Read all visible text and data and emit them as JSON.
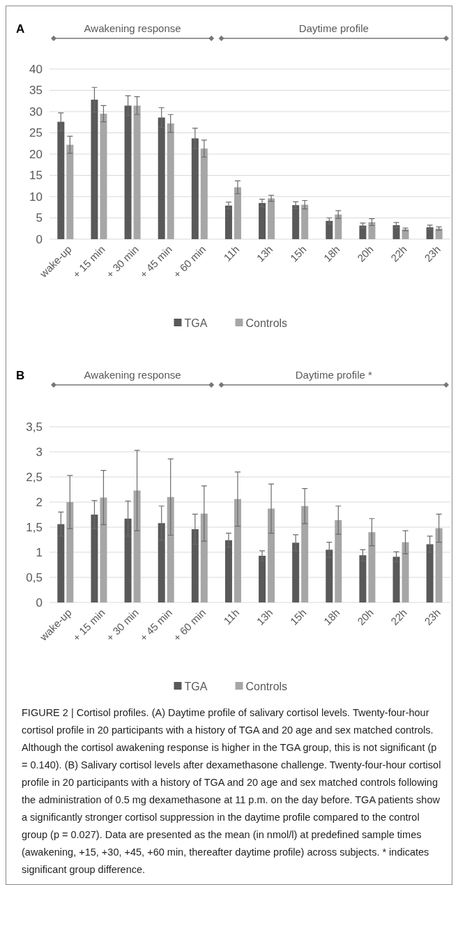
{
  "chart_data": [
    {
      "type": "bar",
      "title": "A",
      "categories": [
        "wake-up",
        "+ 15 min",
        "+ 30 min",
        "+ 45 min",
        "+ 60 min",
        "11h",
        "13h",
        "15h",
        "18h",
        "20h",
        "22h",
        "23h"
      ],
      "series": [
        {
          "name": "TGA",
          "color": "#595959",
          "values": [
            27.6,
            32.8,
            31.4,
            28.6,
            23.7,
            7.9,
            8.5,
            8.0,
            4.3,
            3.2,
            3.3,
            2.8
          ],
          "errors": [
            2.1,
            2.9,
            2.3,
            2.3,
            2.4,
            0.8,
            0.9,
            0.8,
            0.7,
            0.6,
            0.6,
            0.5
          ]
        },
        {
          "name": "Controls",
          "color": "#a6a6a6",
          "values": [
            22.2,
            29.5,
            31.4,
            27.2,
            21.3,
            12.2,
            9.6,
            8.1,
            5.8,
            4.0,
            2.3,
            2.5
          ],
          "errors": [
            2.0,
            1.9,
            2.1,
            2.1,
            2.0,
            1.5,
            0.7,
            1.0,
            0.9,
            0.8,
            0.3,
            0.4
          ]
        }
      ],
      "ylim": [
        0,
        40
      ],
      "yticks": [
        0,
        5,
        10,
        15,
        20,
        25,
        30,
        35,
        40
      ],
      "grid": "y",
      "legend": "bottom",
      "annotations": [
        "Awakening response",
        "Daytime profile"
      ]
    },
    {
      "type": "bar",
      "title": "B",
      "categories": [
        "wake-up",
        "+ 15 min",
        "+ 30 min",
        "+ 45 min",
        "+ 60 min",
        "11h",
        "13h",
        "15h",
        "18h",
        "20h",
        "22h",
        "23h"
      ],
      "series": [
        {
          "name": "TGA",
          "color": "#595959",
          "values": [
            1.56,
            1.75,
            1.67,
            1.58,
            1.46,
            1.24,
            0.93,
            1.19,
            1.05,
            0.94,
            0.91,
            1.16
          ],
          "errors": [
            0.24,
            0.28,
            0.35,
            0.34,
            0.3,
            0.14,
            0.1,
            0.16,
            0.15,
            0.11,
            0.1,
            0.16
          ]
        },
        {
          "name": "Controls",
          "color": "#a6a6a6",
          "values": [
            2.0,
            2.09,
            2.23,
            2.1,
            1.77,
            2.06,
            1.87,
            1.92,
            1.64,
            1.4,
            1.2,
            1.48
          ],
          "errors": [
            0.53,
            0.54,
            0.8,
            0.76,
            0.55,
            0.54,
            0.49,
            0.35,
            0.28,
            0.27,
            0.23,
            0.28
          ]
        }
      ],
      "ylim": [
        0,
        3.5
      ],
      "yticks": [
        0,
        {
          "value": 0.5,
          "label": "0,5"
        },
        1,
        {
          "value": 1.5,
          "label": "1,5"
        },
        2,
        {
          "value": 2.5,
          "label": "2,5"
        },
        3,
        {
          "value": 3.5,
          "label": "3,5"
        }
      ],
      "grid": "y",
      "legend": "bottom",
      "annotations": [
        "Awakening response",
        "Daytime profile *",
        "FIGURE 2 | Cortisol profiles. (A) Daytime profile of salivary cortisol levels. Twenty-four-hour cortisol profile in 20 participants with a history of TGA and 20 age and sex matched controls. Although the cortisol awakening response is higher in the TGA group, this is not significant (p = 0.140). (B) Salivary cortisol levels after dexamethasone challenge. Twenty-four-hour cortisol profile in 20 participants with a history of TGA and 20 age and sex matched controls following the administration of 0.5 mg dexamethasone at 11 p.m. on the day before. TGA patients show a significantly stronger cortisol suppression in the daytime profile compared to the control group (p = 0.027). Data are presented as the mean (in nmol/l) at predefined sample times (awakening, +15, +30, +45, +60 min, thereafter daytime profile) across subjects. * indicates significant group difference."
      ]
    }
  ]
}
